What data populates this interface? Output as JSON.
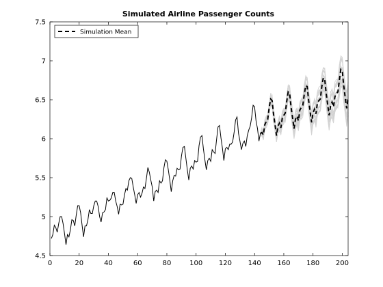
{
  "chart_data": {
    "type": "line",
    "title": "Simulated Airline Passenger Counts",
    "xlabel": "",
    "ylabel": "",
    "xlim": [
      0,
      204
    ],
    "ylim": [
      4.5,
      7.5
    ],
    "x_ticks": [
      0,
      20,
      40,
      60,
      80,
      100,
      120,
      140,
      160,
      180,
      200
    ],
    "y_ticks": [
      4.5,
      5,
      5.5,
      6,
      6.5,
      7,
      7.5
    ],
    "y_tick_labels": [
      "4.5",
      "5",
      "5.5",
      "6",
      "6.5",
      "7",
      "7.5"
    ],
    "grid": false,
    "legend": {
      "location": "top-left",
      "entries": [
        "Simulation Mean"
      ]
    },
    "colors": {
      "observed": "#000000",
      "simulations": "#d3d3d3",
      "mean": "#000000"
    },
    "series": [
      {
        "name": "",
        "style": "solid",
        "x_start": 1,
        "values": [
          4.72,
          4.77,
          4.89,
          4.86,
          4.8,
          4.91,
          5.0,
          5.0,
          4.91,
          4.78,
          4.64,
          4.77,
          4.74,
          4.83,
          4.96,
          4.95,
          4.88,
          5.02,
          5.14,
          5.14,
          5.05,
          4.89,
          4.74,
          4.88,
          4.88,
          4.96,
          5.09,
          5.04,
          5.04,
          5.14,
          5.2,
          5.2,
          5.13,
          5.0,
          4.93,
          5.05,
          5.06,
          5.09,
          5.24,
          5.2,
          5.21,
          5.24,
          5.31,
          5.31,
          5.2,
          5.13,
          5.03,
          5.16,
          5.15,
          5.16,
          5.28,
          5.36,
          5.34,
          5.46,
          5.5,
          5.49,
          5.38,
          5.28,
          5.17,
          5.28,
          5.31,
          5.25,
          5.3,
          5.38,
          5.36,
          5.49,
          5.63,
          5.57,
          5.47,
          5.38,
          5.2,
          5.32,
          5.34,
          5.31,
          5.46,
          5.43,
          5.46,
          5.63,
          5.73,
          5.71,
          5.6,
          5.47,
          5.32,
          5.46,
          5.53,
          5.52,
          5.62,
          5.6,
          5.61,
          5.78,
          5.89,
          5.9,
          5.75,
          5.6,
          5.47,
          5.62,
          5.65,
          5.61,
          5.72,
          5.7,
          5.71,
          5.91,
          6.02,
          6.04,
          5.87,
          5.73,
          5.6,
          5.72,
          5.75,
          5.71,
          5.86,
          5.83,
          5.81,
          5.99,
          6.15,
          6.17,
          6.01,
          5.88,
          5.72,
          5.87,
          5.89,
          5.86,
          5.93,
          5.93,
          5.96,
          6.08,
          6.24,
          6.28,
          6.07,
          5.97,
          5.86,
          5.94,
          5.97,
          5.9,
          6.04,
          6.11,
          6.16,
          6.27,
          6.43,
          6.41,
          6.23,
          6.13,
          5.97,
          6.07
        ]
      },
      {
        "name": "Simulation Mean",
        "style": "dashed",
        "x_start": 145,
        "values": [
          6.08,
          6.05,
          6.18,
          6.22,
          6.25,
          6.4,
          6.51,
          6.49,
          6.31,
          6.18,
          6.04,
          6.16,
          6.2,
          6.14,
          6.27,
          6.3,
          6.33,
          6.48,
          6.6,
          6.58,
          6.4,
          6.27,
          6.13,
          6.25,
          6.29,
          6.23,
          6.37,
          6.4,
          6.43,
          6.57,
          6.68,
          6.67,
          6.49,
          6.35,
          6.21,
          6.33,
          6.38,
          6.32,
          6.46,
          6.49,
          6.51,
          6.67,
          6.78,
          6.76,
          6.58,
          6.44,
          6.3,
          6.42,
          6.47,
          6.41,
          6.54,
          6.58,
          6.6,
          6.75,
          6.89,
          6.87,
          6.68,
          6.53,
          6.39,
          6.52
        ]
      }
    ],
    "simulation_band": {
      "x_start": 145,
      "x_end": 204,
      "paths": 25,
      "spread_start": 0.08,
      "spread_end": 0.35
    }
  }
}
